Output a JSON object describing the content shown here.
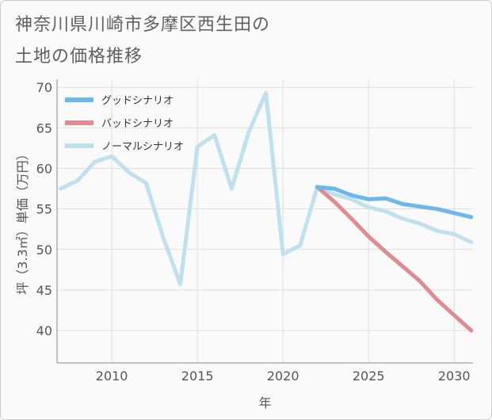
{
  "title_line1": "神奈川県川崎市多摩区西生田の",
  "title_line2": "土地の価格推移",
  "chart_data": {
    "type": "line",
    "xlabel": "年",
    "ylabel": "坪（3.3㎡）単価（万円）",
    "xlim": [
      2006.8,
      2031.1
    ],
    "ylim": [
      36,
      71
    ],
    "xticks": [
      2010,
      2015,
      2020,
      2025,
      2030
    ],
    "yticks": [
      40,
      45,
      50,
      55,
      60,
      65,
      70
    ],
    "legend_position": "top-left",
    "series": [
      {
        "name": "グッドシナリオ",
        "color": "#6cb8ea",
        "x": [
          2022,
          2023,
          2024,
          2025,
          2026,
          2027,
          2028,
          2029,
          2030,
          2031
        ],
        "values": [
          57.7,
          57.5,
          56.7,
          56.2,
          56.3,
          55.6,
          55.3,
          55.0,
          54.5,
          54.0
        ]
      },
      {
        "name": "バッドシナリオ",
        "color": "#e08b8f",
        "x": [
          2022,
          2023,
          2024,
          2025,
          2026,
          2027,
          2028,
          2029,
          2030,
          2031
        ],
        "values": [
          57.7,
          55.9,
          53.8,
          51.6,
          49.7,
          47.9,
          46.1,
          43.8,
          41.9,
          40.0
        ]
      },
      {
        "name": "ノーマルシナリオ",
        "color": "#bfe1ef",
        "x": [
          2007,
          2008,
          2009,
          2010,
          2011,
          2012,
          2013,
          2014,
          2015,
          2016,
          2017,
          2018,
          2019,
          2020,
          2021,
          2022,
          2023,
          2024,
          2025,
          2026,
          2027,
          2028,
          2029,
          2030,
          2031
        ],
        "values": [
          57.5,
          58.5,
          60.8,
          61.5,
          59.5,
          58.2,
          51.5,
          45.7,
          62.7,
          64.1,
          57.5,
          64.5,
          69.3,
          49.4,
          50.5,
          57.7,
          56.8,
          56.2,
          55.2,
          54.7,
          53.8,
          53.2,
          52.3,
          51.9,
          50.9
        ]
      }
    ]
  }
}
